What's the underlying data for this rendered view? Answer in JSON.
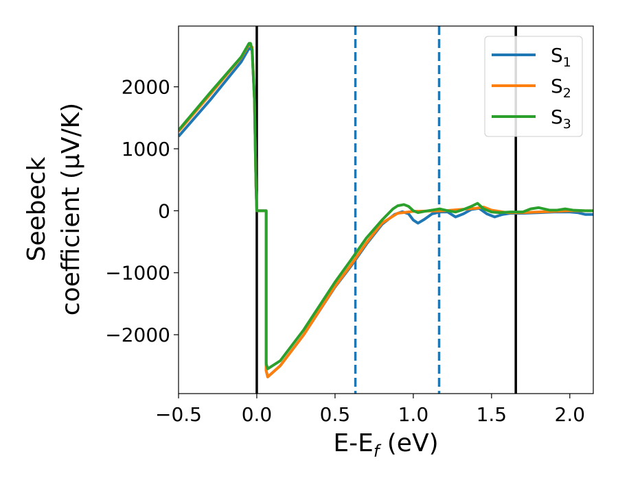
{
  "chart_data": {
    "type": "line",
    "title": "",
    "xlabel": "E-E",
    "xlabel_sub": "f",
    "xlabel_unit": " (eV)",
    "ylabel_line1": "Seebeck",
    "ylabel_line2": "coefficient  (μV/K)",
    "xlim": [
      -0.5,
      2.15
    ],
    "ylim": [
      -2950,
      2980
    ],
    "xticks": [
      -0.5,
      0.0,
      0.5,
      1.0,
      1.5,
      2.0
    ],
    "xtick_labels": [
      "−0.5",
      "0.0",
      "0.5",
      "1.0",
      "1.5",
      "2.0"
    ],
    "yticks": [
      -2000,
      -1000,
      0,
      1000,
      2000
    ],
    "ytick_labels": [
      "−2000",
      "−1000",
      "0",
      "1000",
      "2000"
    ],
    "grid": false,
    "legend_position": "top-right",
    "vlines": [
      {
        "x": 0.0,
        "style": "solid",
        "color": "#000000"
      },
      {
        "x": 0.63,
        "style": "dashed",
        "color": "#1f77b4"
      },
      {
        "x": 1.165,
        "style": "dashed",
        "color": "#1f77b4"
      },
      {
        "x": 1.655,
        "style": "solid",
        "color": "#000000"
      }
    ],
    "series": [
      {
        "name": "S",
        "sub": "1",
        "color": "#1f77b4",
        "points": [
          [
            -0.5,
            1200
          ],
          [
            -0.3,
            1780
          ],
          [
            -0.1,
            2400
          ],
          [
            -0.05,
            2620
          ],
          [
            -0.03,
            2600
          ],
          [
            -0.015,
            1800
          ],
          [
            -0.005,
            400
          ],
          [
            0.0,
            0
          ],
          [
            0.06,
            0
          ],
          [
            0.06,
            -2580
          ],
          [
            0.07,
            -2680
          ],
          [
            0.15,
            -2500
          ],
          [
            0.3,
            -2000
          ],
          [
            0.5,
            -1230
          ],
          [
            0.6,
            -900
          ],
          [
            0.7,
            -540
          ],
          [
            0.8,
            -220
          ],
          [
            0.88,
            -60
          ],
          [
            0.93,
            -15
          ],
          [
            0.97,
            -50
          ],
          [
            1.0,
            -150
          ],
          [
            1.03,
            -200
          ],
          [
            1.07,
            -140
          ],
          [
            1.12,
            -50
          ],
          [
            1.17,
            -20
          ],
          [
            1.22,
            -20
          ],
          [
            1.27,
            -100
          ],
          [
            1.32,
            -50
          ],
          [
            1.37,
            20
          ],
          [
            1.42,
            40
          ],
          [
            1.47,
            -50
          ],
          [
            1.52,
            -100
          ],
          [
            1.57,
            -60
          ],
          [
            1.62,
            -40
          ],
          [
            1.7,
            -40
          ],
          [
            1.8,
            -30
          ],
          [
            1.9,
            -20
          ],
          [
            2.0,
            -20
          ],
          [
            2.05,
            -30
          ],
          [
            2.1,
            -60
          ],
          [
            2.15,
            -60
          ]
        ]
      },
      {
        "name": "S",
        "sub": "2",
        "color": "#ff7f0e",
        "points": [
          [
            -0.5,
            1280
          ],
          [
            -0.3,
            1870
          ],
          [
            -0.1,
            2470
          ],
          [
            -0.05,
            2680
          ],
          [
            -0.03,
            2640
          ],
          [
            -0.015,
            1800
          ],
          [
            -0.005,
            400
          ],
          [
            0.0,
            0
          ],
          [
            0.06,
            0
          ],
          [
            0.06,
            -2580
          ],
          [
            0.07,
            -2680
          ],
          [
            0.15,
            -2500
          ],
          [
            0.3,
            -2000
          ],
          [
            0.5,
            -1220
          ],
          [
            0.6,
            -880
          ],
          [
            0.7,
            -520
          ],
          [
            0.8,
            -200
          ],
          [
            0.9,
            -40
          ],
          [
            1.0,
            -10
          ],
          [
            1.1,
            -5
          ],
          [
            1.2,
            0
          ],
          [
            1.3,
            20
          ],
          [
            1.4,
            40
          ],
          [
            1.45,
            60
          ],
          [
            1.5,
            10
          ],
          [
            1.6,
            -30
          ],
          [
            1.7,
            -30
          ],
          [
            1.8,
            -20
          ],
          [
            1.9,
            -10
          ],
          [
            2.0,
            0
          ],
          [
            2.15,
            0
          ]
        ]
      },
      {
        "name": "S",
        "sub": "3",
        "color": "#2ca02c",
        "points": [
          [
            -0.5,
            1300
          ],
          [
            -0.3,
            1900
          ],
          [
            -0.1,
            2480
          ],
          [
            -0.05,
            2700
          ],
          [
            -0.04,
            2700
          ],
          [
            -0.03,
            2600
          ],
          [
            -0.015,
            1800
          ],
          [
            -0.005,
            400
          ],
          [
            0.0,
            0
          ],
          [
            0.06,
            0
          ],
          [
            0.06,
            -2470
          ],
          [
            0.07,
            -2550
          ],
          [
            0.15,
            -2420
          ],
          [
            0.3,
            -1920
          ],
          [
            0.5,
            -1150
          ],
          [
            0.6,
            -800
          ],
          [
            0.7,
            -440
          ],
          [
            0.8,
            -150
          ],
          [
            0.87,
            30
          ],
          [
            0.9,
            80
          ],
          [
            0.94,
            100
          ],
          [
            0.97,
            70
          ],
          [
            1.0,
            0
          ],
          [
            1.03,
            -30
          ],
          [
            1.07,
            -10
          ],
          [
            1.12,
            10
          ],
          [
            1.17,
            30
          ],
          [
            1.22,
            0
          ],
          [
            1.27,
            -20
          ],
          [
            1.32,
            20
          ],
          [
            1.37,
            70
          ],
          [
            1.41,
            120
          ],
          [
            1.45,
            30
          ],
          [
            1.5,
            -20
          ],
          [
            1.55,
            -30
          ],
          [
            1.62,
            -20
          ],
          [
            1.7,
            -20
          ],
          [
            1.75,
            30
          ],
          [
            1.8,
            50
          ],
          [
            1.87,
            10
          ],
          [
            1.92,
            10
          ],
          [
            1.97,
            30
          ],
          [
            2.02,
            10
          ],
          [
            2.1,
            0
          ],
          [
            2.15,
            0
          ]
        ]
      }
    ]
  }
}
